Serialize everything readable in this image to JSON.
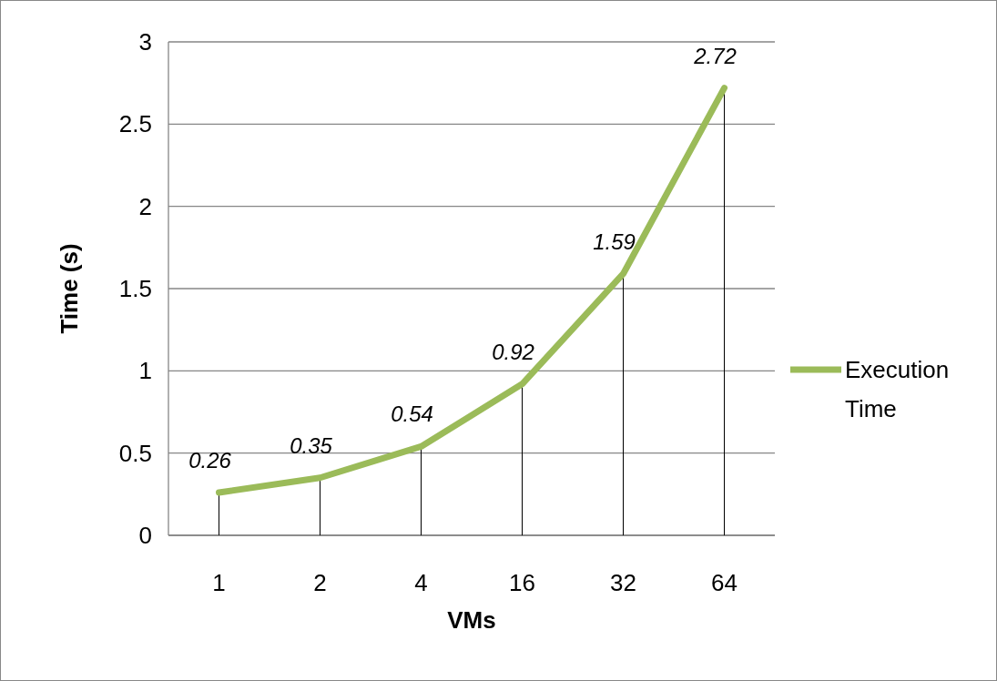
{
  "chart_data": {
    "type": "line",
    "xlabel": "VMs",
    "ylabel": "Time (s)",
    "categories": [
      "1",
      "2",
      "4",
      "16",
      "32",
      "64"
    ],
    "series": [
      {
        "name": "Execution Time",
        "color": "#9bbb59",
        "values": [
          0.26,
          0.35,
          0.54,
          0.92,
          1.59,
          2.72
        ],
        "errors": [
          [
            0,
            0.26
          ],
          [
            0,
            0.35
          ],
          [
            0,
            0.54
          ],
          [
            0,
            0.92
          ],
          [
            0,
            1.59
          ],
          [
            0,
            2.72
          ]
        ]
      }
    ],
    "ylim": [
      0,
      3
    ],
    "yticks": [
      0,
      0.5,
      1,
      1.5,
      2,
      2.5,
      3
    ],
    "grid": "y",
    "legend": "right",
    "data_labels": true,
    "marker": "none"
  }
}
